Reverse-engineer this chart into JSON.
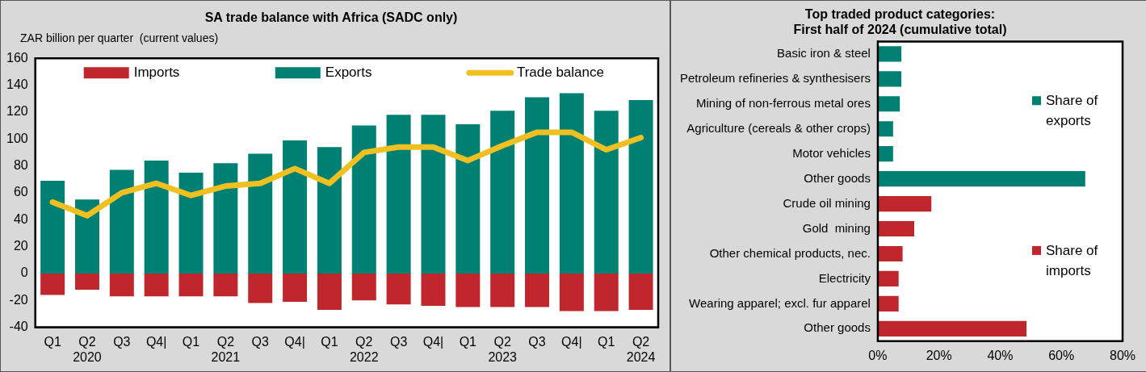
{
  "chart_data": [
    {
      "type": "bar",
      "title": "SA trade balance with Africa (SADC only)",
      "ylabel": "ZAR billion per quarter  (current values)",
      "categories": [
        "Q1",
        "Q2\n2020",
        "Q3",
        "Q4|",
        "Q1",
        "Q2\n2021",
        "Q3",
        "Q4|",
        "Q1",
        "Q2\n2022",
        "Q3",
        "Q4|",
        "Q1",
        "Q2\n2023",
        "Q3",
        "Q4|",
        "Q1",
        "Q2\n2024"
      ],
      "stacked": true,
      "series": [
        {
          "name": "Imports",
          "color": "#c0272d",
          "values": [
            -16,
            -12,
            -17,
            -17,
            -17,
            -17,
            -22,
            -21,
            -27,
            -20,
            -23,
            -24,
            -25,
            -25,
            -25,
            -28,
            -28,
            -27
          ]
        },
        {
          "name": "Exports",
          "color": "#007f73",
          "values": [
            69,
            55,
            77,
            84,
            75,
            82,
            89,
            99,
            94,
            110,
            118,
            118,
            111,
            121,
            131,
            134,
            121,
            129
          ]
        },
        {
          "name": "Trade balance",
          "type": "line",
          "color": "#f0c020",
          "values": [
            53,
            43,
            60,
            67,
            58,
            65,
            67,
            78,
            67,
            90,
            94,
            94,
            84,
            95,
            105,
            105,
            92,
            101
          ]
        }
      ],
      "ylim": [
        -40,
        160
      ],
      "yticks": [
        -40,
        -20,
        0,
        20,
        40,
        60,
        80,
        100,
        120,
        140,
        160
      ],
      "grid": false,
      "legend": "top",
      "marker": "none"
    },
    {
      "type": "bar",
      "title": "Top traded product categories:\nFirst half of 2024 (cumulative total)",
      "orientation": "horizontal",
      "stacked": true,
      "categories": [
        "Basic iron & steel",
        "Petroleum refineries & synthesisers",
        "Mining of non-ferrous metal ores",
        "Agriculture (cereals & other crops)",
        "Motor vehicles",
        "Other goods",
        "Crude oil mining",
        "Gold  mining",
        "Other chemical products, nec.",
        "Electricity",
        "Wearing apparel; excl. fur apparel",
        "Other goods"
      ],
      "series": [
        {
          "name": "Share of exports",
          "color": "#007f73",
          "values": [
            7.7,
            7.7,
            7.2,
            5,
            5,
            67.8,
            null,
            null,
            null,
            null,
            null,
            null
          ]
        },
        {
          "name": "Share of imports",
          "color": "#c0272d",
          "values": [
            null,
            null,
            null,
            null,
            null,
            null,
            17.5,
            11.9,
            8.1,
            6.8,
            6.8,
            48.6
          ]
        }
      ],
      "xlim": [
        0,
        80
      ],
      "xticks": [
        {
          "value": 0,
          "label": "0%"
        },
        {
          "value": 20,
          "label": "20%"
        },
        {
          "value": 40,
          "label": "40%"
        },
        {
          "value": 60,
          "label": "60%"
        },
        {
          "value": 80,
          "label": "80%"
        }
      ],
      "grid": false,
      "legend": "right"
    }
  ]
}
